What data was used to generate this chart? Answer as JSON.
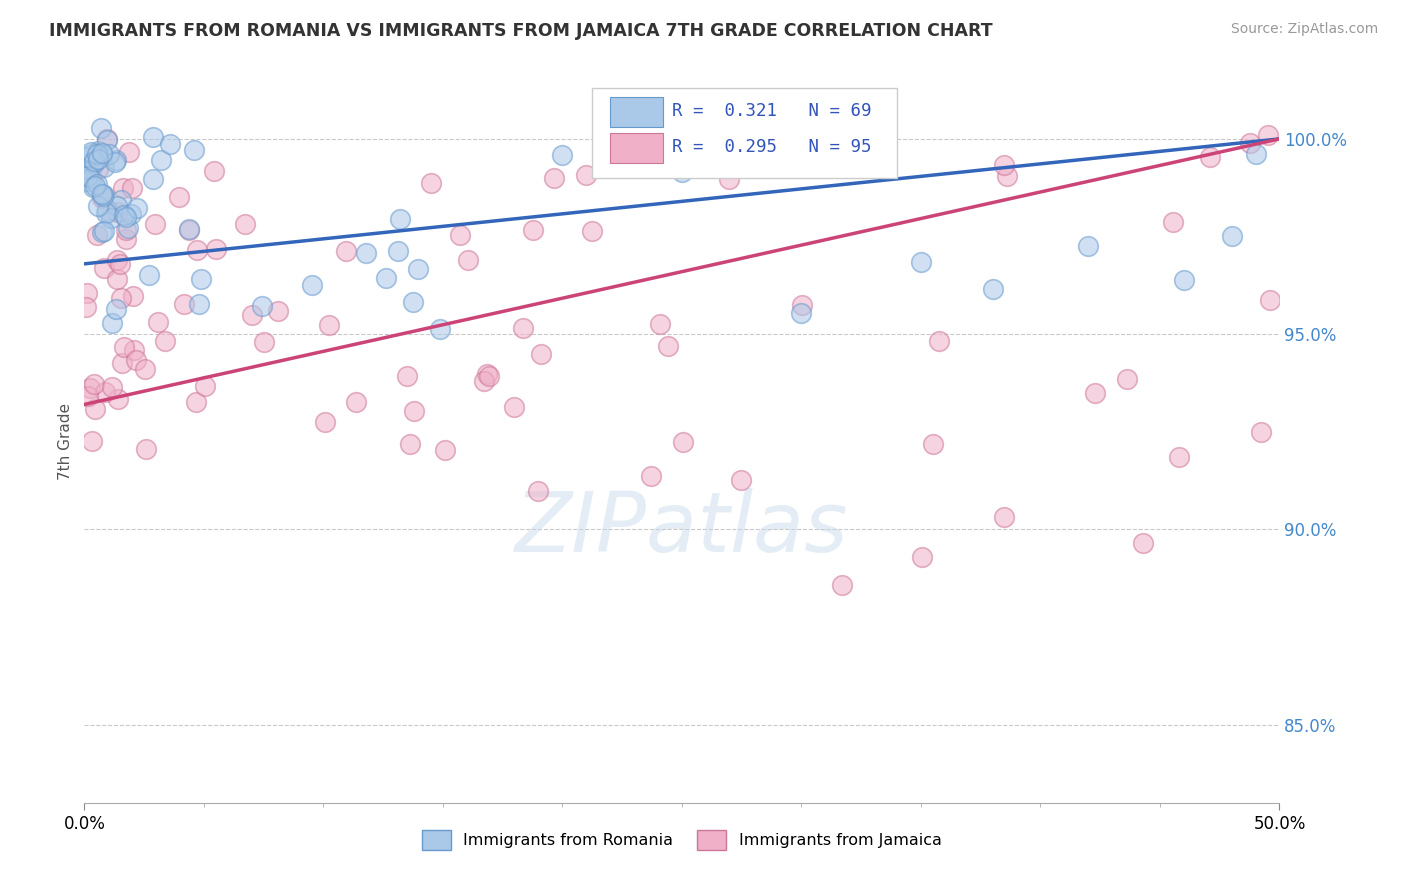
{
  "title": "IMMIGRANTS FROM ROMANIA VS IMMIGRANTS FROM JAMAICA 7TH GRADE CORRELATION CHART",
  "source": "Source: ZipAtlas.com",
  "ylabel": "7th Grade",
  "ylim": [
    83.0,
    101.5
  ],
  "xlim": [
    0.0,
    50.0
  ],
  "yticks": [
    85.0,
    90.0,
    95.0,
    100.0
  ],
  "ytick_labels": [
    "85.0%",
    "90.0%",
    "95.0%",
    "100.0%"
  ],
  "romania_color": "#aac8e8",
  "jamaica_color": "#f0b0c8",
  "romania_edge": "#6699cc",
  "jamaica_edge": "#cc7799",
  "trend_romania_color": "#3366bb",
  "trend_jamaica_color": "#cc4477",
  "legend_R_romania": "R =  0.321",
  "legend_N_romania": "N = 69",
  "legend_R_jamaica": "R =  0.295",
  "legend_N_jamaica": "N = 95",
  "watermark": "ZIPatlas",
  "trend_rom_x0": 0.0,
  "trend_rom_y0": 96.8,
  "trend_rom_x1": 50.0,
  "trend_rom_y1": 100.0,
  "trend_jam_x0": 0.0,
  "trend_jam_y0": 93.2,
  "trend_jam_x1": 50.0,
  "trend_jam_y1": 100.0
}
